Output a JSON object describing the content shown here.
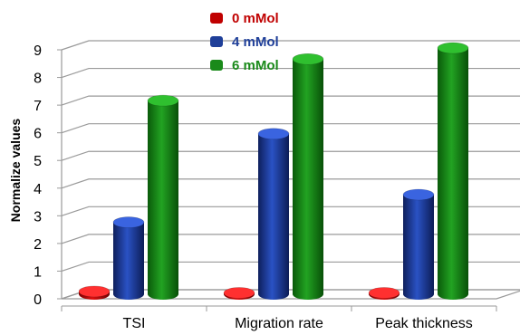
{
  "chart_data": {
    "type": "bar",
    "style": "3d-cylinder",
    "categories": [
      "TSI",
      "Migration rate",
      "Peak thickness"
    ],
    "series": [
      {
        "name": "0 mMol",
        "values": [
          0.1,
          0.05,
          0.05
        ],
        "color": "#c00000"
      },
      {
        "name": "4 mMol",
        "values": [
          2.6,
          5.8,
          3.6
        ],
        "color": "#1f3f99"
      },
      {
        "name": "6 mMol",
        "values": [
          7.0,
          8.5,
          8.9
        ],
        "color": "#1a8a1a"
      }
    ],
    "ylabel": "Normalize values",
    "xlabel": "",
    "ylim": [
      0,
      9
    ],
    "yticks": [
      0,
      1,
      2,
      3,
      4,
      5,
      6,
      7,
      8,
      9
    ],
    "grid": true,
    "legend_position": "top-center"
  }
}
